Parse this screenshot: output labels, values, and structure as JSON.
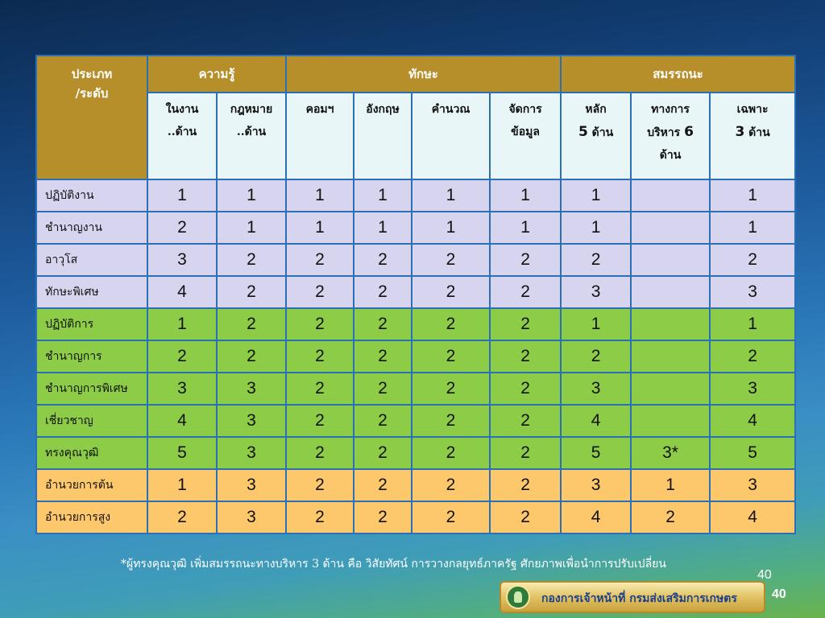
{
  "table": {
    "corner_label_line1": "ประเภท",
    "corner_label_line2": "/ระดับ",
    "groups": [
      {
        "label": "ความรู้"
      },
      {
        "label": "ทักษะ"
      },
      {
        "label": "สมรรถนะ"
      }
    ],
    "subheaders": [
      {
        "line1": "ในงาน",
        "line2": "..ด้าน"
      },
      {
        "line1": "กฎหมาย",
        "line2": "..ด้าน"
      },
      {
        "line1": "คอมฯ"
      },
      {
        "line1": "อังกฤษ"
      },
      {
        "line1": "คำนวณ"
      },
      {
        "line1": "จัดการ",
        "line2": "ข้อมูล"
      },
      {
        "line1": "หลัก",
        "num": "5",
        "line2": "ด้าน"
      },
      {
        "line1": "ทางการ",
        "line2": "บริหาร",
        "num": "6",
        "line3": "ด้าน"
      },
      {
        "line1": "เฉพาะ",
        "num": "3",
        "line2": "ด้าน"
      }
    ],
    "rows": [
      {
        "label": "ปฏิบัติงาน",
        "group": "lav",
        "values": [
          "1",
          "1",
          "1",
          "1",
          "1",
          "1",
          "1",
          "",
          "1"
        ]
      },
      {
        "label": "ชำนาญงาน",
        "group": "lav",
        "values": [
          "2",
          "1",
          "1",
          "1",
          "1",
          "1",
          "1",
          "",
          "1"
        ]
      },
      {
        "label": "อาวุโส",
        "group": "lav",
        "values": [
          "3",
          "2",
          "2",
          "2",
          "2",
          "2",
          "2",
          "",
          "2"
        ]
      },
      {
        "label": "ทักษะพิเศษ",
        "group": "lav",
        "values": [
          "4",
          "2",
          "2",
          "2",
          "2",
          "2",
          "3",
          "",
          "3"
        ]
      },
      {
        "label": "ปฏิบัติการ",
        "group": "grn",
        "values": [
          "1",
          "2",
          "2",
          "2",
          "2",
          "2",
          "1",
          "",
          "1"
        ]
      },
      {
        "label": "ชำนาญการ",
        "group": "grn",
        "values": [
          "2",
          "2",
          "2",
          "2",
          "2",
          "2",
          "2",
          "",
          "2"
        ]
      },
      {
        "label": "ชำนาญการพิเศษ",
        "group": "grn",
        "values": [
          "3",
          "3",
          "2",
          "2",
          "2",
          "2",
          "3",
          "",
          "3"
        ]
      },
      {
        "label": "เชี่ยวชาญ",
        "group": "grn",
        "values": [
          "4",
          "3",
          "2",
          "2",
          "2",
          "2",
          "4",
          "",
          "4"
        ]
      },
      {
        "label": "ทรงคุณวุฒิ",
        "group": "grn",
        "values": [
          "5",
          "3",
          "2",
          "2",
          "2",
          "2",
          "5",
          "3*",
          "5"
        ]
      },
      {
        "label": "อำนวยการต้น",
        "group": "org",
        "values": [
          "1",
          "3",
          "2",
          "2",
          "2",
          "2",
          "3",
          "1",
          "3"
        ]
      },
      {
        "label": "อำนวยการสูง",
        "group": "org",
        "values": [
          "2",
          "3",
          "2",
          "2",
          "2",
          "2",
          "4",
          "2",
          "4"
        ]
      }
    ]
  },
  "footnote": "*ผู้ทรงคุณวุฒิ เพิ่มสมรรถนะทางบริหาร 3 ด้าน คือ วิสัยทัศน์ การวางกลยุทธ์ภาครัฐ   ศักยภาพเพื่อนำการปรับเปลี่ยน",
  "page_number_small": "40",
  "page_number_bold": "40",
  "banner": {
    "text": "กองการเจ้าหน้าที่ กรมส่งเสริมการเกษตร",
    "logo_icon": "department-emblem-icon"
  },
  "colors": {
    "header_gold": "#b68f2b",
    "subheader_bg": "#e9f6f7",
    "row_lavender": "#d6d4ee",
    "row_green": "#8ccc46",
    "row_orange": "#fdc86b",
    "grid_border": "#2b6fb4"
  }
}
